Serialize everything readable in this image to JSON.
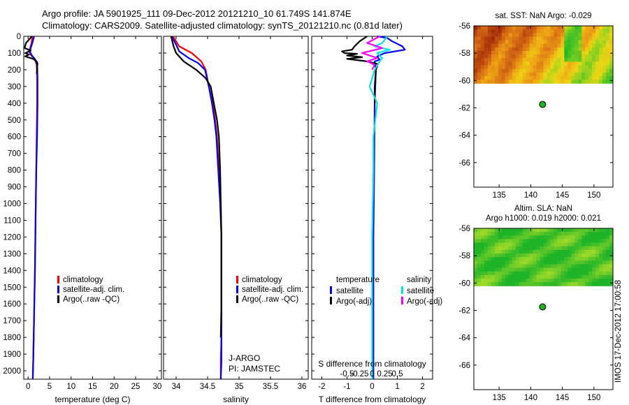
{
  "header": {
    "line1": "Argo profile: JA 5901925_111 09-Dec-2012 20121210_10 61.749S 141.874E",
    "line2": "Climatology: CARS2009. Satellite-adjusted climatology: synTS_20121210.nc (0.81d later)"
  },
  "watermark": "IMOS 17-Dec-2012 17:00:58",
  "colors": {
    "climatology": "#ff0000",
    "satellite": "#0000ff",
    "argo": "#000000",
    "sal_satellite": "#00e5e5",
    "sal_argo": "#ff00ff",
    "map_marker": "#22b022"
  },
  "chart_data": [
    {
      "type": "line",
      "panel": "temperature",
      "xlabel": "temperature (deg C)",
      "ylabel": "",
      "xlim": [
        -1,
        31
      ],
      "ylim": [
        2050,
        0
      ],
      "xticks": [
        0,
        5,
        10,
        15,
        20,
        25,
        30
      ],
      "yticks": [
        0,
        100,
        200,
        300,
        400,
        500,
        600,
        700,
        800,
        900,
        1000,
        1100,
        1200,
        1300,
        1400,
        1500,
        1600,
        1700,
        1800,
        1900,
        2000
      ],
      "legend": [
        "climatology",
        "satellite-adj. clim.",
        "Argo(..raw -QC)"
      ],
      "series": [
        {
          "name": "climatology",
          "color": "#ff0000",
          "x": [
            1.0,
            0.8,
            0.5,
            0.3,
            0.6,
            1.6,
            2.0,
            2.1,
            2.1,
            2.0,
            1.9,
            1.8,
            1.7,
            1.6,
            1.45,
            1.3,
            1.2,
            1.1
          ],
          "y": [
            0,
            40,
            70,
            90,
            110,
            140,
            170,
            250,
            400,
            600,
            800,
            1000,
            1200,
            1400,
            1600,
            1800,
            1950,
            2050
          ]
        },
        {
          "name": "satellite-adj. clim.",
          "color": "#0000ff",
          "x": [
            1.4,
            1.0,
            0.6,
            0.5,
            0.9,
            1.7,
            2.1,
            2.2,
            2.2,
            2.1,
            1.9,
            1.8,
            1.7,
            1.6,
            1.45,
            1.3,
            1.2,
            1.1
          ],
          "y": [
            0,
            40,
            70,
            95,
            115,
            140,
            170,
            250,
            400,
            600,
            800,
            1000,
            1200,
            1400,
            1600,
            1800,
            1950,
            2050
          ]
        },
        {
          "name": "Argo(..raw -QC)",
          "color": "#000000",
          "x": [
            0.9,
            -0.5,
            -0.8,
            0.6,
            -0.6,
            0.2,
            -0.7,
            1.2,
            2.0,
            2.2,
            2.1,
            2.1,
            2.0
          ],
          "y": [
            0,
            40,
            70,
            85,
            100,
            110,
            120,
            135,
            150,
            165,
            180,
            200,
            225
          ]
        }
      ]
    },
    {
      "type": "line",
      "panel": "salinity",
      "xlabel": "salinity",
      "ylabel": "",
      "xlim": [
        33.8,
        36.1
      ],
      "ylim": [
        2050,
        0
      ],
      "xticks": [
        34,
        34.5,
        35,
        35.5,
        36
      ],
      "legend": [
        "climatology",
        "satellite-adj. clim.",
        "Argo(..raw -QC)"
      ],
      "annotations": [
        "J-ARGO",
        "PI: JAMSTEC"
      ],
      "series": [
        {
          "name": "climatology",
          "color": "#ff0000",
          "x": [
            33.95,
            34.05,
            34.25,
            34.4,
            34.47,
            34.52,
            34.58,
            34.62,
            34.65,
            34.68,
            34.71,
            34.72,
            34.72,
            34.72,
            34.72,
            34.71,
            34.71,
            34.71
          ],
          "y": [
            0,
            60,
            100,
            150,
            200,
            300,
            400,
            500,
            600,
            800,
            1000,
            1200,
            1400,
            1600,
            1800,
            1950,
            2000,
            2050
          ]
        },
        {
          "name": "satellite-adj. clim.",
          "color": "#0000ff",
          "x": [
            33.93,
            34.0,
            34.05,
            34.2,
            34.35,
            34.46,
            34.52,
            34.57,
            34.61,
            34.64,
            34.67,
            34.7,
            34.72,
            34.72,
            34.72,
            34.72,
            34.72,
            34.71
          ],
          "y": [
            0,
            50,
            90,
            130,
            160,
            200,
            300,
            400,
            500,
            600,
            800,
            1000,
            1200,
            1400,
            1600,
            1800,
            1950,
            2050
          ]
        },
        {
          "name": "Argo(..raw -QC)",
          "color": "#000000",
          "x": [
            33.92,
            33.96,
            34.0,
            34.12,
            34.32,
            34.47,
            34.55,
            34.6,
            34.65,
            34.68,
            34.7,
            34.71,
            34.72,
            34.72,
            34.72,
            34.71
          ],
          "y": [
            0,
            60,
            100,
            150,
            200,
            250,
            300,
            400,
            500,
            600,
            800,
            1000,
            1200,
            1400,
            1600,
            1800
          ]
        }
      ]
    },
    {
      "type": "line",
      "panel": "differences",
      "xlabel": "T difference from climatology",
      "x2label": "S difference from climatology",
      "xlim": [
        -2.4,
        2.4
      ],
      "ylim": [
        2050,
        0
      ],
      "xticks": [
        -2,
        -1,
        0,
        1,
        2
      ],
      "x2ticks": [
        -0.5,
        -0.25,
        0,
        0.25,
        0.5
      ],
      "legend_groups": {
        "temperature": [
          "satellite",
          "Argo(-adj)"
        ],
        "salinity": [
          "satellite",
          "Argo(-adj)"
        ]
      },
      "series": [
        {
          "name": "temperature satellite",
          "color": "#0000ff",
          "x": [
            0.2,
            0.6,
            0.8,
            1.2,
            1.3,
            0.5,
            0.2,
            0.3,
            0.1,
            0.15,
            0.1,
            0.08,
            0.05,
            0.05,
            0.05,
            0.05,
            0.05
          ],
          "y": [
            0,
            10,
            30,
            60,
            80,
            100,
            120,
            140,
            150,
            200,
            400,
            800,
            1200,
            1600,
            1800,
            2000,
            2050
          ]
        },
        {
          "name": "temperature Argo(-adj)",
          "color": "#000000",
          "x": [
            -0.2,
            -0.5,
            -0.7,
            -0.8,
            -1.2,
            -1.1,
            -0.6,
            -1.0,
            -0.4,
            -1.0,
            -0.2,
            0.2,
            0.2,
            0.15,
            0.1,
            0.1
          ],
          "y": [
            0,
            30,
            60,
            80,
            90,
            100,
            105,
            115,
            125,
            135,
            150,
            165,
            180,
            200,
            300,
            400
          ]
        },
        {
          "name": "salinity satellite",
          "color": "#00e5e5",
          "x": [
            0.6,
            0.4,
            0.1,
            0.7,
            0.2,
            0.4,
            0.3,
            0.1,
            -0.1,
            0.2,
            0.05,
            0.05,
            0.0,
            0.0,
            0.0,
            0.0
          ],
          "y": [
            0,
            40,
            60,
            80,
            100,
            130,
            150,
            200,
            300,
            400,
            600,
            800,
            1200,
            1600,
            1900,
            2050
          ]
        },
        {
          "name": "salinity Argo(-adj)",
          "color": "#ff00ff",
          "x": [
            0.3,
            -0.2,
            0.4,
            -0.4,
            0.2,
            -0.2,
            0.1,
            0.0
          ],
          "y": [
            0,
            40,
            70,
            100,
            130,
            150,
            170,
            200
          ]
        }
      ]
    },
    {
      "type": "heatmap",
      "panel": "sat-sst-map",
      "title": "sat. SST: NaN Argo: -0.029",
      "xlim": [
        131,
        153
      ],
      "ylim": [
        -67.8,
        -56
      ],
      "xticks": [
        135,
        140,
        145,
        150
      ],
      "yticks": [
        -56,
        -58,
        -60,
        -62,
        -64,
        -66
      ],
      "field_extent": {
        "lon": [
          131,
          153
        ],
        "lat": [
          -60.2,
          -56
        ]
      },
      "marker": {
        "lon": 141.874,
        "lat": -61.749
      }
    },
    {
      "type": "heatmap",
      "panel": "altim-sla-map",
      "title": "Altim. SLA: NaN",
      "subtitle": "Argo h1000: 0.019 h2000: 0.021",
      "xlim": [
        131,
        153
      ],
      "ylim": [
        -67.8,
        -56
      ],
      "xticks": [
        135,
        140,
        145,
        150
      ],
      "yticks": [
        -56,
        -58,
        -60,
        -62,
        -64,
        -66
      ],
      "field_extent": {
        "lon": [
          131,
          153
        ],
        "lat": [
          -60.2,
          -56
        ]
      },
      "marker": {
        "lon": 141.874,
        "lat": -61.749
      }
    }
  ]
}
